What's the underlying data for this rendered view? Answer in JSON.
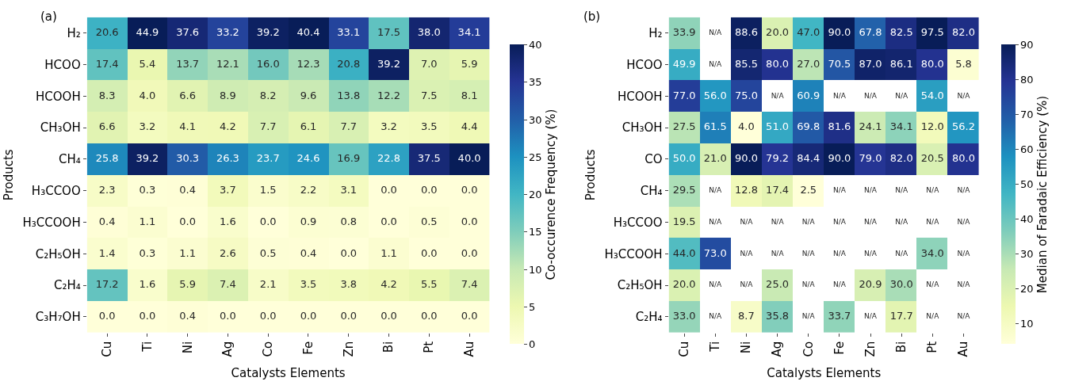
{
  "chart_data": [
    {
      "type": "heatmap",
      "title": "(a)",
      "xlabel": "Catalysts Elements",
      "ylabel": "Products",
      "clabel": "Co-occurence Frequency (%)",
      "categories": [
        "Cu",
        "Ti",
        "Ni",
        "Ag",
        "Co",
        "Fe",
        "Zn",
        "Bi",
        "Pt",
        "Au"
      ],
      "y_categories": [
        "H₂",
        "HCOO",
        "HCOOH",
        "CH₃OH",
        "CH₄",
        "H₃CCOO",
        "H₃CCOOH",
        "C₂H₅OH",
        "C₂H₄",
        "C₃H₇OH"
      ],
      "cells": [
        [
          20.6,
          44.9,
          37.6,
          33.2,
          39.2,
          40.4,
          33.1,
          17.5,
          38.0,
          34.1
        ],
        [
          17.4,
          5.4,
          13.7,
          12.1,
          16.0,
          12.3,
          20.8,
          39.2,
          7.0,
          5.9
        ],
        [
          8.3,
          4.0,
          6.6,
          8.9,
          8.2,
          9.6,
          13.8,
          12.2,
          7.5,
          8.1
        ],
        [
          6.6,
          3.2,
          4.1,
          4.2,
          7.7,
          6.1,
          7.7,
          3.2,
          3.5,
          4.4
        ],
        [
          25.8,
          39.2,
          30.3,
          26.3,
          23.7,
          24.6,
          16.9,
          22.8,
          37.5,
          40.0
        ],
        [
          2.3,
          0.3,
          0.4,
          3.7,
          1.5,
          2.2,
          3.1,
          0.0,
          0.0,
          0.0
        ],
        [
          0.4,
          1.1,
          0.0,
          1.6,
          0.0,
          0.9,
          0.8,
          0.0,
          0.5,
          0.0
        ],
        [
          1.4,
          0.3,
          1.1,
          2.6,
          0.5,
          0.4,
          0.0,
          1.1,
          0.0,
          0.0
        ],
        [
          17.2,
          1.6,
          5.9,
          7.4,
          2.1,
          3.5,
          3.8,
          4.2,
          5.5,
          7.4
        ],
        [
          0.0,
          0.0,
          0.4,
          0.0,
          0.0,
          0.0,
          0.0,
          0.0,
          0.0,
          0.0
        ]
      ],
      "cell_labels": [
        [
          "20.6",
          "44.9",
          "37.6",
          "33.2",
          "39.2",
          "40.4",
          "33.1",
          "17.5",
          "38.0",
          "34.1"
        ],
        [
          "17.4",
          "5.4",
          "13.7",
          "12.1",
          "16.0",
          "12.3",
          "20.8",
          "39.2",
          "7.0",
          "5.9"
        ],
        [
          "8.3",
          "4.0",
          "6.6",
          "8.9",
          "8.2",
          "9.6",
          "13.8",
          "12.2",
          "7.5",
          "8.1"
        ],
        [
          "6.6",
          "3.2",
          "4.1",
          "4.2",
          "7.7",
          "6.1",
          "7.7",
          "3.2",
          "3.5",
          "4.4"
        ],
        [
          "25.8",
          "39.2",
          "30.3",
          "26.3",
          "23.7",
          "24.6",
          "16.9",
          "22.8",
          "37.5",
          "40.0"
        ],
        [
          "2.3",
          "0.3",
          "0.4",
          "3.7",
          "1.5",
          "2.2",
          "3.1",
          "0.0",
          "0.0",
          "0.0"
        ],
        [
          "0.4",
          "1.1",
          "0.0",
          "1.6",
          "0.0",
          "0.9",
          "0.8",
          "0.0",
          "0.5",
          "0.0"
        ],
        [
          "1.4",
          "0.3",
          "1.1",
          "2.6",
          "0.5",
          "0.4",
          "0.0",
          "1.1",
          "0.0",
          "0.0"
        ],
        [
          "17.2",
          "1.6",
          "5.9",
          "7.4",
          "2.1",
          "3.5",
          "3.8",
          "4.2",
          "5.5",
          "7.4"
        ],
        [
          "0.0",
          "0.0",
          "0.4",
          "0.0",
          "0.0",
          "0.0",
          "0.0",
          "0.0",
          "0.0",
          "0.0"
        ]
      ],
      "clim": [
        0,
        40
      ],
      "cticks": [
        0,
        5,
        10,
        15,
        20,
        25,
        30,
        35,
        40
      ]
    },
    {
      "type": "heatmap",
      "title": "(b)",
      "xlabel": "Catalysts Elements",
      "ylabel": "Products",
      "clabel": "Median of Faradaic Efficiency (%)",
      "categories": [
        "Cu",
        "Ti",
        "Ni",
        "Ag",
        "Co",
        "Fe",
        "Zn",
        "Bi",
        "Pt",
        "Au"
      ],
      "y_categories": [
        "H₂",
        "HCOO",
        "HCOOH",
        "CH₃OH",
        "CO",
        "CH₄",
        "H₃CCOO",
        "H₃CCOOH",
        "C₂H₅OH",
        "C₂H₄"
      ],
      "cells": [
        [
          33.9,
          null,
          88.6,
          20.0,
          47.0,
          90.0,
          67.8,
          82.5,
          97.5,
          82.0
        ],
        [
          49.9,
          null,
          85.5,
          80.0,
          27.0,
          70.5,
          87.0,
          86.1,
          80.0,
          5.8
        ],
        [
          77.0,
          56.0,
          75.0,
          null,
          60.9,
          null,
          null,
          null,
          54.0,
          null
        ],
        [
          27.5,
          61.5,
          4.0,
          51.0,
          69.8,
          81.6,
          24.1,
          34.1,
          12.0,
          56.2
        ],
        [
          50.0,
          21.0,
          90.0,
          79.2,
          84.4,
          90.0,
          79.0,
          82.0,
          20.5,
          80.0
        ],
        [
          29.5,
          null,
          12.8,
          17.4,
          2.5,
          null,
          null,
          null,
          null,
          null
        ],
        [
          19.5,
          null,
          null,
          null,
          null,
          null,
          null,
          null,
          null,
          null
        ],
        [
          44.0,
          73.0,
          null,
          null,
          null,
          null,
          null,
          null,
          34.0,
          null
        ],
        [
          20.0,
          null,
          null,
          25.0,
          null,
          null,
          20.9,
          30.0,
          null,
          null
        ],
        [
          33.0,
          null,
          8.7,
          35.8,
          null,
          33.7,
          null,
          17.7,
          null,
          null
        ]
      ],
      "cell_labels": [
        [
          "33.9",
          "N/A",
          "88.6",
          "20.0",
          "47.0",
          "90.0",
          "67.8",
          "82.5",
          "97.5",
          "82.0"
        ],
        [
          "49.9",
          "N/A",
          "85.5",
          "80.0",
          "27.0",
          "70.5",
          "87.0",
          "86.1",
          "80.0",
          "5.8"
        ],
        [
          "77.0",
          "56.0",
          "75.0",
          "N/A",
          "60.9",
          "N/A",
          "N/A",
          "N/A",
          "54.0",
          "N/A"
        ],
        [
          "27.5",
          "61.5",
          "4.0",
          "51.0",
          "69.8",
          "81.6",
          "24.1",
          "34.1",
          "12.0",
          "56.2"
        ],
        [
          "50.0",
          "21.0",
          "90.0",
          "79.2",
          "84.4",
          "90.0",
          "79.0",
          "82.0",
          "20.5",
          "80.0"
        ],
        [
          "29.5",
          "N/A",
          "12.8",
          "17.4",
          "2.5",
          "N/A",
          "N/A",
          "N/A",
          "N/A",
          "N/A"
        ],
        [
          "19.5",
          "N/A",
          "N/A",
          "N/A",
          "N/A",
          "N/A",
          "N/A",
          "N/A",
          "N/A",
          "N/A"
        ],
        [
          "44.0",
          "73.0",
          "N/A",
          "N/A",
          "N/A",
          "N/A",
          "N/A",
          "N/A",
          "34.0",
          "N/A"
        ],
        [
          "20.0",
          "N/A",
          "N/A",
          "25.0",
          "N/A",
          "N/A",
          "20.9",
          "30.0",
          "N/A",
          "N/A"
        ],
        [
          "33.0",
          "N/A",
          "8.7",
          "35.8",
          "N/A",
          "33.7",
          "N/A",
          "17.7",
          "N/A",
          "N/A"
        ]
      ],
      "clim": [
        4,
        90
      ],
      "cticks": [
        10,
        20,
        30,
        40,
        50,
        60,
        70,
        80,
        90
      ]
    }
  ]
}
